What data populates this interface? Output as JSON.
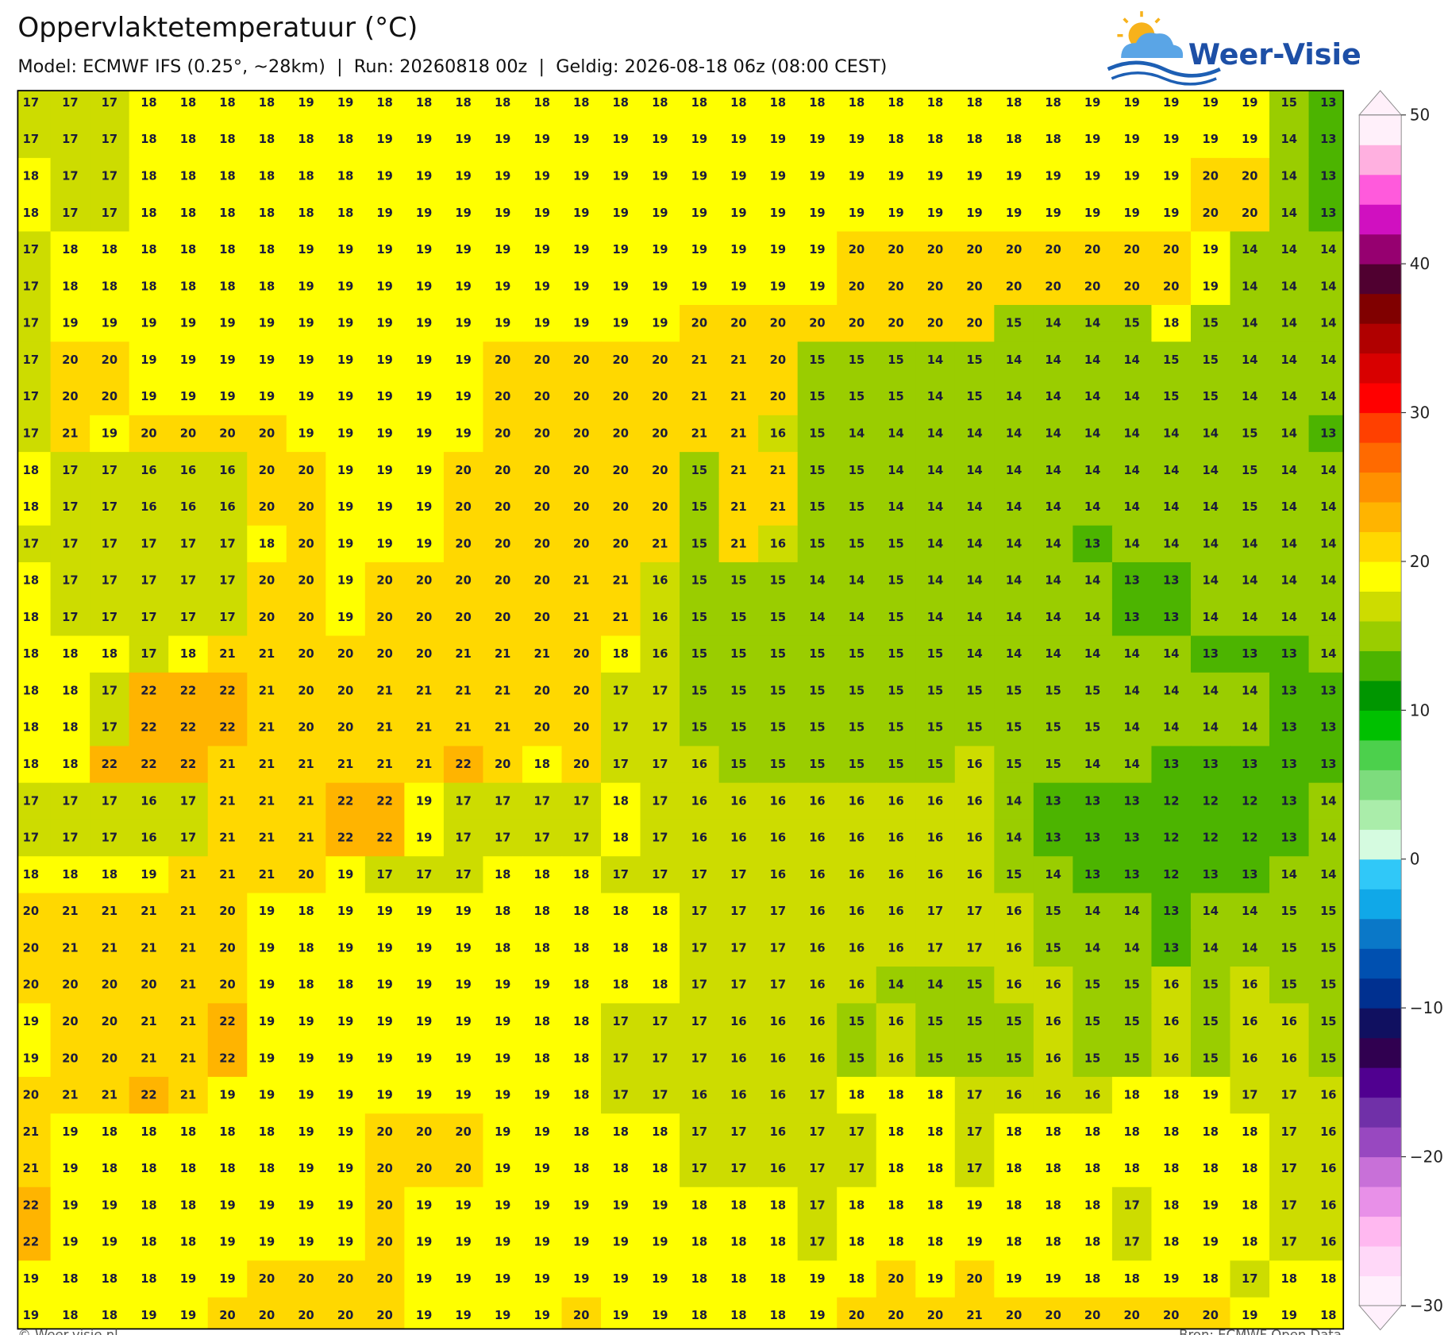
{
  "header": {
    "title": "Oppervlaktetemperatuur (°C)",
    "subtitle": "Model: ECMWF IFS (0.25°, ~28km)  |  Run: 20260818 00z  |  Geldig: 2026-08-18 06z (08:00 CEST)",
    "logo": "Weer-Visie"
  },
  "map": {
    "values": [
      [
        17,
        17,
        17,
        18,
        18,
        18,
        18,
        19,
        19,
        18,
        18,
        18,
        18,
        18,
        18,
        18,
        18,
        18,
        18,
        18,
        18,
        18,
        18,
        18,
        18,
        18,
        18,
        19,
        19,
        19,
        19,
        19,
        15,
        13
      ],
      [
        17,
        17,
        17,
        18,
        18,
        18,
        18,
        18,
        18,
        19,
        19,
        19,
        19,
        19,
        19,
        19,
        19,
        19,
        19,
        19,
        19,
        19,
        18,
        18,
        18,
        18,
        18,
        19,
        19,
        19,
        19,
        19,
        14,
        13
      ],
      [
        18,
        17,
        17,
        18,
        18,
        18,
        18,
        18,
        18,
        19,
        19,
        19,
        19,
        19,
        19,
        19,
        19,
        19,
        19,
        19,
        19,
        19,
        19,
        19,
        19,
        19,
        19,
        19,
        19,
        19,
        20,
        20,
        14,
        13
      ],
      [
        18,
        17,
        17,
        18,
        18,
        18,
        18,
        18,
        18,
        19,
        19,
        19,
        19,
        19,
        19,
        19,
        19,
        19,
        19,
        19,
        19,
        19,
        19,
        19,
        19,
        19,
        19,
        19,
        19,
        19,
        20,
        20,
        14,
        13
      ],
      [
        17,
        18,
        18,
        18,
        18,
        18,
        18,
        19,
        19,
        19,
        19,
        19,
        19,
        19,
        19,
        19,
        19,
        19,
        19,
        19,
        19,
        20,
        20,
        20,
        20,
        20,
        20,
        20,
        20,
        20,
        19,
        14,
        14,
        14
      ],
      [
        17,
        18,
        18,
        18,
        18,
        18,
        18,
        19,
        19,
        19,
        19,
        19,
        19,
        19,
        19,
        19,
        19,
        19,
        19,
        19,
        19,
        20,
        20,
        20,
        20,
        20,
        20,
        20,
        20,
        20,
        19,
        14,
        14,
        14
      ],
      [
        17,
        19,
        19,
        19,
        19,
        19,
        19,
        19,
        19,
        19,
        19,
        19,
        19,
        19,
        19,
        19,
        19,
        20,
        20,
        20,
        20,
        20,
        20,
        20,
        20,
        15,
        14,
        14,
        15,
        18,
        15,
        14,
        14,
        14
      ],
      [
        17,
        20,
        20,
        19,
        19,
        19,
        19,
        19,
        19,
        19,
        19,
        19,
        20,
        20,
        20,
        20,
        20,
        21,
        21,
        20,
        15,
        15,
        15,
        14,
        15,
        14,
        14,
        14,
        14,
        15,
        15,
        14,
        14,
        14
      ],
      [
        17,
        20,
        20,
        19,
        19,
        19,
        19,
        19,
        19,
        19,
        19,
        19,
        20,
        20,
        20,
        20,
        20,
        21,
        21,
        20,
        15,
        15,
        15,
        14,
        15,
        14,
        14,
        14,
        14,
        15,
        15,
        14,
        14,
        14
      ],
      [
        17,
        21,
        19,
        20,
        20,
        20,
        20,
        19,
        19,
        19,
        19,
        19,
        20,
        20,
        20,
        20,
        20,
        21,
        21,
        16,
        15,
        14,
        14,
        14,
        14,
        14,
        14,
        14,
        14,
        14,
        14,
        15,
        14,
        13
      ],
      [
        18,
        17,
        17,
        16,
        16,
        16,
        20,
        20,
        19,
        19,
        19,
        20,
        20,
        20,
        20,
        20,
        20,
        15,
        21,
        21,
        15,
        15,
        14,
        14,
        14,
        14,
        14,
        14,
        14,
        14,
        14,
        15,
        14,
        14
      ],
      [
        18,
        17,
        17,
        16,
        16,
        16,
        20,
        20,
        19,
        19,
        19,
        20,
        20,
        20,
        20,
        20,
        20,
        15,
        21,
        21,
        15,
        15,
        14,
        14,
        14,
        14,
        14,
        14,
        14,
        14,
        14,
        15,
        14,
        14
      ],
      [
        17,
        17,
        17,
        17,
        17,
        17,
        18,
        20,
        19,
        19,
        19,
        20,
        20,
        20,
        20,
        20,
        21,
        15,
        21,
        16,
        15,
        15,
        15,
        14,
        14,
        14,
        14,
        13,
        14,
        14,
        14,
        14,
        14,
        14
      ],
      [
        18,
        17,
        17,
        17,
        17,
        17,
        20,
        20,
        19,
        20,
        20,
        20,
        20,
        20,
        21,
        21,
        16,
        15,
        15,
        15,
        14,
        14,
        15,
        14,
        14,
        14,
        14,
        14,
        13,
        13,
        14,
        14,
        14,
        14
      ],
      [
        18,
        17,
        17,
        17,
        17,
        17,
        20,
        20,
        19,
        20,
        20,
        20,
        20,
        20,
        21,
        21,
        16,
        15,
        15,
        15,
        14,
        14,
        15,
        14,
        14,
        14,
        14,
        14,
        13,
        13,
        14,
        14,
        14,
        14
      ],
      [
        18,
        18,
        18,
        17,
        18,
        21,
        21,
        20,
        20,
        20,
        20,
        21,
        21,
        21,
        20,
        18,
        16,
        15,
        15,
        15,
        15,
        15,
        15,
        15,
        14,
        14,
        14,
        14,
        14,
        14,
        13,
        13,
        13,
        14
      ],
      [
        18,
        18,
        17,
        22,
        22,
        22,
        21,
        20,
        20,
        21,
        21,
        21,
        21,
        20,
        20,
        17,
        17,
        15,
        15,
        15,
        15,
        15,
        15,
        15,
        15,
        15,
        15,
        15,
        14,
        14,
        14,
        14,
        13,
        13
      ],
      [
        18,
        18,
        17,
        22,
        22,
        22,
        21,
        20,
        20,
        21,
        21,
        21,
        21,
        20,
        20,
        17,
        17,
        15,
        15,
        15,
        15,
        15,
        15,
        15,
        15,
        15,
        15,
        15,
        14,
        14,
        14,
        14,
        13,
        13
      ],
      [
        18,
        18,
        22,
        22,
        22,
        21,
        21,
        21,
        21,
        21,
        21,
        22,
        20,
        18,
        20,
        17,
        17,
        16,
        15,
        15,
        15,
        15,
        15,
        15,
        16,
        15,
        15,
        14,
        14,
        13,
        13,
        13,
        13,
        13
      ],
      [
        17,
        17,
        17,
        16,
        17,
        21,
        21,
        21,
        22,
        22,
        19,
        17,
        17,
        17,
        17,
        18,
        17,
        16,
        16,
        16,
        16,
        16,
        16,
        16,
        16,
        14,
        13,
        13,
        13,
        12,
        12,
        12,
        13,
        14
      ],
      [
        17,
        17,
        17,
        16,
        17,
        21,
        21,
        21,
        22,
        22,
        19,
        17,
        17,
        17,
        17,
        18,
        17,
        16,
        16,
        16,
        16,
        16,
        16,
        16,
        16,
        14,
        13,
        13,
        13,
        12,
        12,
        12,
        13,
        14
      ],
      [
        18,
        18,
        18,
        19,
        21,
        21,
        21,
        20,
        19,
        17,
        17,
        17,
        18,
        18,
        18,
        17,
        17,
        17,
        17,
        16,
        16,
        16,
        16,
        16,
        16,
        15,
        14,
        13,
        13,
        12,
        13,
        13,
        14,
        14
      ],
      [
        20,
        21,
        21,
        21,
        21,
        20,
        19,
        18,
        19,
        19,
        19,
        19,
        18,
        18,
        18,
        18,
        18,
        17,
        17,
        17,
        16,
        16,
        16,
        17,
        17,
        16,
        15,
        14,
        14,
        13,
        14,
        14,
        15,
        15
      ],
      [
        20,
        21,
        21,
        21,
        21,
        20,
        19,
        18,
        19,
        19,
        19,
        19,
        18,
        18,
        18,
        18,
        18,
        17,
        17,
        17,
        16,
        16,
        16,
        17,
        17,
        16,
        15,
        14,
        14,
        13,
        14,
        14,
        15,
        15
      ],
      [
        20,
        20,
        20,
        20,
        21,
        20,
        19,
        18,
        18,
        19,
        19,
        19,
        19,
        19,
        18,
        18,
        18,
        17,
        17,
        17,
        16,
        16,
        14,
        14,
        15,
        16,
        16,
        15,
        15,
        16,
        15,
        16,
        15,
        15
      ],
      [
        19,
        20,
        20,
        21,
        21,
        22,
        19,
        19,
        19,
        19,
        19,
        19,
        19,
        18,
        18,
        17,
        17,
        17,
        16,
        16,
        16,
        15,
        16,
        15,
        15,
        15,
        16,
        15,
        15,
        16,
        15,
        16,
        16,
        15
      ],
      [
        19,
        20,
        20,
        21,
        21,
        22,
        19,
        19,
        19,
        19,
        19,
        19,
        19,
        18,
        18,
        17,
        17,
        17,
        16,
        16,
        16,
        15,
        16,
        15,
        15,
        15,
        16,
        15,
        15,
        16,
        15,
        16,
        16,
        15
      ],
      [
        20,
        21,
        21,
        22,
        21,
        19,
        19,
        19,
        19,
        19,
        19,
        19,
        19,
        19,
        18,
        17,
        17,
        16,
        16,
        16,
        17,
        18,
        18,
        18,
        17,
        16,
        16,
        16,
        18,
        18,
        19,
        17,
        17,
        16
      ],
      [
        21,
        19,
        18,
        18,
        18,
        18,
        18,
        19,
        19,
        20,
        20,
        20,
        19,
        19,
        18,
        18,
        18,
        17,
        17,
        16,
        17,
        17,
        18,
        18,
        17,
        18,
        18,
        18,
        18,
        18,
        18,
        18,
        17,
        16
      ],
      [
        21,
        19,
        18,
        18,
        18,
        18,
        18,
        19,
        19,
        20,
        20,
        20,
        19,
        19,
        18,
        18,
        18,
        17,
        17,
        16,
        17,
        17,
        18,
        18,
        17,
        18,
        18,
        18,
        18,
        18,
        18,
        18,
        17,
        16
      ],
      [
        22,
        19,
        19,
        18,
        18,
        19,
        19,
        19,
        19,
        20,
        19,
        19,
        19,
        19,
        19,
        19,
        19,
        18,
        18,
        18,
        17,
        18,
        18,
        18,
        19,
        18,
        18,
        18,
        17,
        18,
        19,
        18,
        17,
        16
      ],
      [
        22,
        19,
        19,
        18,
        18,
        19,
        19,
        19,
        19,
        20,
        19,
        19,
        19,
        19,
        19,
        19,
        19,
        18,
        18,
        18,
        17,
        18,
        18,
        18,
        19,
        18,
        18,
        18,
        17,
        18,
        19,
        18,
        17,
        16
      ],
      [
        19,
        18,
        18,
        18,
        19,
        19,
        20,
        20,
        20,
        20,
        19,
        19,
        19,
        19,
        19,
        19,
        19,
        18,
        18,
        18,
        19,
        18,
        20,
        19,
        20,
        19,
        19,
        18,
        18,
        19,
        18,
        17,
        18,
        18
      ],
      [
        19,
        18,
        18,
        19,
        19,
        20,
        20,
        20,
        20,
        20,
        19,
        19,
        19,
        19,
        20,
        19,
        19,
        18,
        18,
        18,
        19,
        20,
        20,
        20,
        21,
        20,
        20,
        20,
        20,
        20,
        20,
        19,
        19,
        18
      ]
    ]
  },
  "colorbar": {
    "lim": [
      -30,
      50
    ],
    "colors": [
      "#fff0fc",
      "#ffd8f8",
      "#ffb8f0",
      "#e890e8",
      "#c870d8",
      "#9848c0",
      "#7030a8",
      "#500090",
      "#300050",
      "#101060",
      "#003090",
      "#0050b0",
      "#0a78c8",
      "#10a8e8",
      "#30c8f8",
      "#d5fbe0",
      "#aaedaa",
      "#7ddc7d",
      "#4cd04c",
      "#00c000",
      "#009600",
      "#4cb400",
      "#9acd00",
      "#cddc00",
      "#ffff00",
      "#ffd800",
      "#ffb400",
      "#ff9000",
      "#ff6a00",
      "#ff4000",
      "#ff0000",
      "#d80000",
      "#b00000",
      "#800000",
      "#500030",
      "#960070",
      "#d010c0",
      "#ff5adc",
      "#ffb0e0",
      "#fff0fa"
    ],
    "ticks": [
      50,
      40,
      30,
      20,
      10,
      0,
      {
        "value": -10,
        "label": "−10"
      },
      {
        "value": -20,
        "label": "−20"
      },
      {
        "value": -30,
        "label": "−30"
      }
    ]
  },
  "footer": {
    "left": "© Weer-visie.nl",
    "right": "Bron: ECMWF Open Data"
  }
}
